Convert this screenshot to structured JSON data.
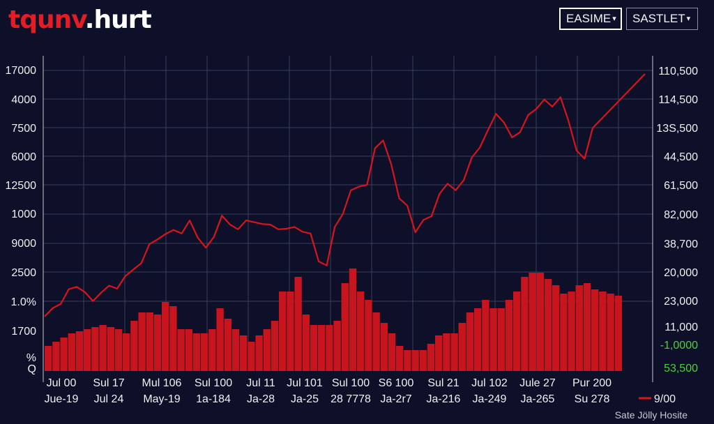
{
  "header": {
    "logo_text": "tqunv",
    "logo_suffix": ".hurt",
    "dropdown_1": "EASIME",
    "dropdown_2": "SASTLET"
  },
  "footer": {
    "source_note": "Sate Jölly Hosite"
  },
  "colors": {
    "background": "#0d1028",
    "line": "#d8141c",
    "bars": "#c8141c",
    "grid": "#3a3e5c",
    "accent_green": "#4cd23a"
  },
  "icons": {
    "dropdown_caret": "caret-down-icon"
  },
  "chart_data": {
    "type": "line",
    "title": "",
    "grid": true,
    "left_axis_labels": [
      "17000",
      "4000",
      "7500",
      "6000",
      "12500",
      "1000",
      "9000",
      "2500",
      "1.0%",
      "1700",
      "%",
      "Q"
    ],
    "right_axis_labels": [
      "110,500",
      "114,500",
      "13S,500",
      "44,500",
      "61,500",
      "82,000",
      "38,700",
      "20,000",
      "23,000",
      "11,000",
      "-1,0000",
      "53,500"
    ],
    "x_tick_labels_row1": [
      "Jul 00",
      "Sul 17",
      "Mul 106",
      "Sul 100",
      "Jul 11",
      "Jul 101",
      "Sul 100",
      "S6 100",
      "Sul 21",
      "Jul 102",
      "Jule 27",
      "Pur 200"
    ],
    "x_tick_labels_row2": [
      "Jue-19",
      "Jul 24",
      "May-19",
      "1a-184",
      "Ja-28",
      "Ja-25",
      "28 7778",
      "Ja-2r7",
      "Ja-216",
      "Ja-249",
      "Ja-265",
      "Su 278"
    ],
    "legend": [
      {
        "name": "9/00",
        "marker": "line"
      }
    ],
    "series": [
      {
        "name": "line",
        "values": [
          1720,
          1860,
          1930,
          2180,
          2220,
          2130,
          1980,
          2120,
          2240,
          2190,
          2400,
          2510,
          2620,
          2940,
          3020,
          3110,
          3180,
          3120,
          3340,
          3050,
          2880,
          3060,
          3420,
          3270,
          3190,
          3340,
          3310,
          3280,
          3270,
          3190,
          3200,
          3230,
          3150,
          3120,
          2650,
          2580,
          3230,
          3450,
          3850,
          3910,
          3940,
          4560,
          4690,
          4290,
          3710,
          3590,
          3140,
          3350,
          3410,
          3790,
          3960,
          3850,
          4020,
          4400,
          4570,
          4860,
          5140,
          4990,
          4740,
          4830,
          5120,
          5220,
          5380,
          5260,
          5420,
          5020,
          4520,
          4380,
          4900
        ]
      },
      {
        "name": "bars",
        "values": [
          600,
          700,
          800,
          900,
          950,
          1000,
          1050,
          1100,
          1050,
          1000,
          900,
          1200,
          1400,
          1400,
          1350,
          1650,
          1550,
          1000,
          1000,
          900,
          900,
          1000,
          1500,
          1250,
          1000,
          850,
          700,
          850,
          1000,
          1200,
          1900,
          1900,
          2250,
          1350,
          1100,
          1100,
          1100,
          1200,
          2100,
          2450,
          1900,
          1700,
          1400,
          1150,
          900,
          600,
          500,
          500,
          500,
          650,
          850,
          900,
          900,
          1150,
          1400,
          1500,
          1700,
          1500,
          1500,
          1700,
          1900,
          2250,
          2350,
          2350,
          2200,
          2050,
          1850,
          1900,
          2050,
          2100,
          1950,
          1900,
          1850,
          1800
        ]
      }
    ],
    "left_ylim_note": "left tick labels as printed",
    "legend_placement": "bottom-right"
  }
}
